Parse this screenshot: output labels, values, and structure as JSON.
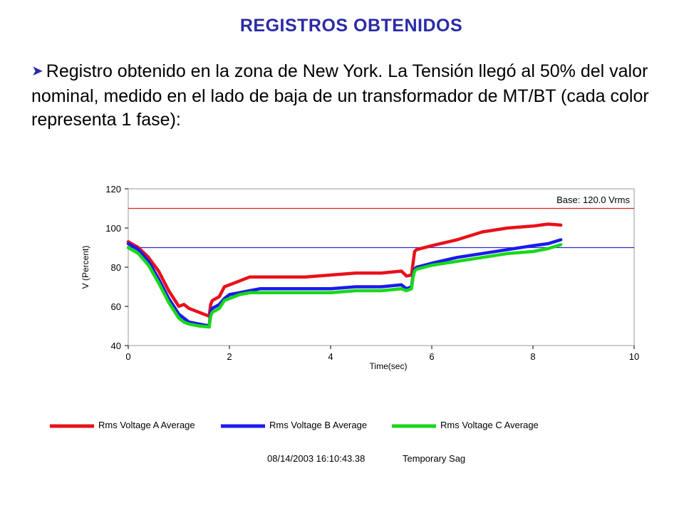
{
  "slide": {
    "title": "REGISTROS OBTENIDOS",
    "bullet_text": "Registro obtenido en la zona de New York. La Tensión  llegó al 50% del valor nominal, medido en el lado de baja de un transformador de MT/BT (cada color representa 1 fase):"
  },
  "chart_data": {
    "type": "line",
    "xlabel": "Time(sec)",
    "ylabel": "V (Percent)",
    "xlim": [
      0,
      10
    ],
    "ylim": [
      40,
      120
    ],
    "x_ticks": [
      "0",
      "2",
      "4",
      "6",
      "8",
      "10"
    ],
    "y_ticks": [
      "40",
      "60",
      "80",
      "100",
      "120"
    ],
    "base_label": "Base: 120.0 Vrms",
    "reference_lines": [
      {
        "y": 110,
        "color": "#d9241c"
      },
      {
        "y": 90,
        "color": "#2b2bd0"
      }
    ],
    "grid": false,
    "legend_position": "bottom",
    "series": [
      {
        "name": "Rms Voltage A Average",
        "color": "#e8111a",
        "x": [
          0,
          0.2,
          0.4,
          0.6,
          0.8,
          1.0,
          1.1,
          1.2,
          1.4,
          1.6,
          1.63,
          1.66,
          1.8,
          1.9,
          2.0,
          2.2,
          2.4,
          2.6,
          3.0,
          3.5,
          4.0,
          4.5,
          5.0,
          5.4,
          5.5,
          5.6,
          5.63,
          5.66,
          5.7,
          6.0,
          6.5,
          7.0,
          7.5,
          8.0,
          8.3,
          8.55
        ],
        "y": [
          93,
          90,
          85,
          78,
          68,
          60,
          61,
          59,
          57,
          55,
          61,
          63,
          65,
          70,
          71,
          73,
          75,
          75,
          75,
          75,
          76,
          77,
          77,
          78,
          75.5,
          76,
          82,
          88,
          89,
          91,
          94,
          98,
          100,
          101,
          102,
          101.5
        ]
      },
      {
        "name": "Rms Voltage B Average",
        "color": "#1a1aee",
        "x": [
          0,
          0.2,
          0.4,
          0.6,
          0.8,
          1.0,
          1.1,
          1.2,
          1.4,
          1.6,
          1.63,
          1.66,
          1.8,
          1.9,
          2.0,
          2.2,
          2.4,
          2.6,
          3.0,
          3.5,
          4.0,
          4.5,
          5.0,
          5.4,
          5.5,
          5.6,
          5.63,
          5.66,
          5.7,
          6.0,
          6.5,
          7.0,
          7.5,
          8.0,
          8.3,
          8.55
        ],
        "y": [
          92,
          89,
          83,
          74,
          64,
          56,
          54,
          52,
          51,
          50,
          57,
          59,
          61,
          64,
          66,
          67,
          68,
          69,
          69,
          69,
          69,
          70,
          70,
          71,
          69,
          70,
          76,
          79,
          80,
          82,
          85,
          87,
          89,
          91,
          92,
          94
        ]
      },
      {
        "name": "Rms Voltage C Average",
        "color": "#18d818",
        "x": [
          0,
          0.2,
          0.4,
          0.6,
          0.8,
          1.0,
          1.1,
          1.2,
          1.4,
          1.6,
          1.63,
          1.66,
          1.8,
          1.9,
          2.0,
          2.2,
          2.4,
          2.6,
          3.0,
          3.5,
          4.0,
          4.5,
          5.0,
          5.4,
          5.5,
          5.6,
          5.63,
          5.66,
          5.7,
          6.0,
          6.5,
          7.0,
          7.5,
          8.0,
          8.3,
          8.55
        ],
        "y": [
          90,
          87,
          81,
          72,
          62,
          54,
          52,
          51,
          50,
          49.5,
          55,
          57,
          59,
          63,
          64,
          66,
          67,
          67,
          67,
          67,
          67,
          68,
          68,
          69,
          68,
          69,
          75,
          78,
          79,
          81,
          83,
          85,
          87,
          88,
          89.5,
          91.5
        ]
      }
    ],
    "footer": {
      "timestamp": "08/14/2003 16:10:43.38",
      "event_type": "Temporary Sag"
    }
  }
}
